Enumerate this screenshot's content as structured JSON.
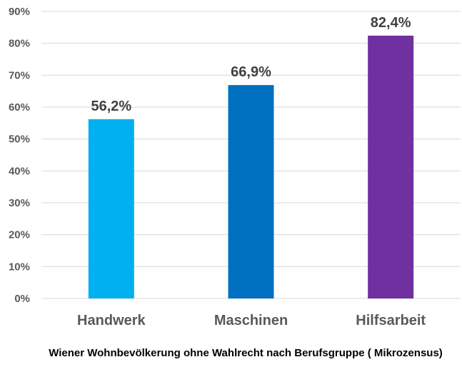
{
  "chart_data": {
    "type": "bar",
    "title": "Wiener Wohnbevölkerung ohne Wahlrecht nach Berufsgruppe ( Mikrozensus)",
    "xlabel": "",
    "ylabel": "",
    "categories": [
      "Handwerk",
      "Maschinen",
      "Hilfsarbeit"
    ],
    "values": [
      56.2,
      66.9,
      82.4
    ],
    "value_labels": [
      "56,2%",
      "66,9%",
      "82,4%"
    ],
    "colors": [
      "#00b0f0",
      "#0070c0",
      "#7030a0"
    ],
    "ylim": [
      0,
      90
    ],
    "y_ticks": [
      0,
      10,
      20,
      30,
      40,
      50,
      60,
      70,
      80,
      90
    ],
    "y_tick_labels": [
      "0%",
      "10%",
      "20%",
      "30%",
      "40%",
      "50%",
      "60%",
      "70%",
      "80%",
      "90%"
    ],
    "grid": true,
    "legend": "none"
  }
}
